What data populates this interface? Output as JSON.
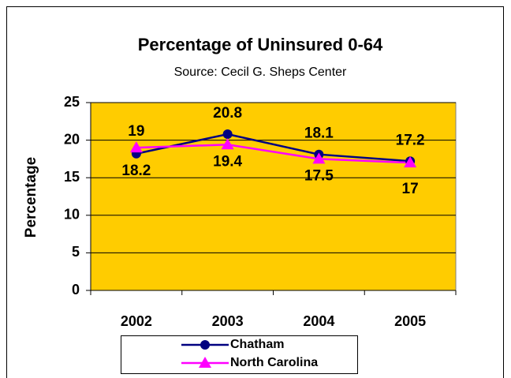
{
  "chart_data": {
    "type": "line",
    "title": "Percentage of Uninsured 0-64",
    "subtitle": "Source: Cecil G. Sheps Center",
    "y_label": "Percentage",
    "categories": [
      "2002",
      "2003",
      "2004",
      "2005"
    ],
    "series": [
      {
        "name": "Chatham",
        "color": "#000080",
        "marker": "circle",
        "values": [
          18.2,
          20.8,
          18.1,
          17.2
        ]
      },
      {
        "name": "North Carolina",
        "color": "#ff00ff",
        "marker": "triangle",
        "values": [
          19,
          19.4,
          17.5,
          17
        ]
      }
    ],
    "ylim": [
      0,
      25
    ],
    "yticks": [
      0,
      5,
      10,
      15,
      20,
      25
    ],
    "grid": true,
    "plot_color": "#ffcc00",
    "legend": "bottom"
  }
}
